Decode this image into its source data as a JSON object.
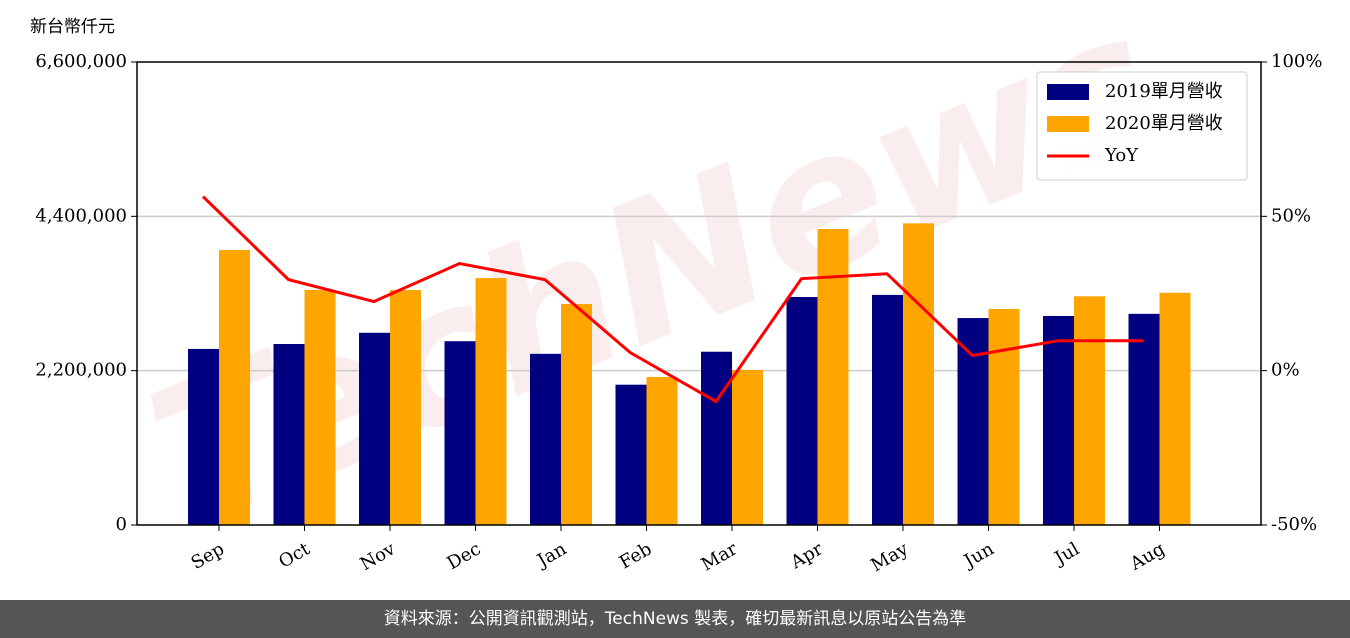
{
  "chart_data": {
    "type": "bar",
    "title": "新台幣仟元",
    "watermark": "TechNews",
    "categories": [
      "Sep",
      "Oct",
      "Nov",
      "Dec",
      "Jan",
      "Feb",
      "Mar",
      "Apr",
      "May",
      "Jun",
      "Jul",
      "Aug"
    ],
    "series": [
      {
        "name": "2019單月營收",
        "color": "#000080",
        "values": [
          2510000,
          2580000,
          2740000,
          2620000,
          2440000,
          2000000,
          2470000,
          3250000,
          3280000,
          2950000,
          2980000,
          3010000
        ]
      },
      {
        "name": "2020單月營收",
        "color": "#ffa500",
        "values": [
          3920000,
          3350000,
          3350000,
          3520000,
          3150000,
          2110000,
          2210000,
          4220000,
          4300000,
          3080000,
          3260000,
          3310000
        ]
      },
      {
        "name": "YoY",
        "color": "#ff0000",
        "type": "line",
        "axis": "y2",
        "values": [
          56.4,
          29.5,
          22.4,
          34.7,
          29.5,
          5.8,
          -10,
          29.8,
          31.4,
          4.9,
          9.7,
          9.7
        ]
      }
    ],
    "ylim": [
      0,
      6600000
    ],
    "yticks": [
      0,
      {
        "value": 2200000,
        "label": "2,200,000"
      },
      {
        "value": 4400000,
        "label": "4,400,000"
      },
      {
        "value": 6600000,
        "label": "6,600,000"
      }
    ],
    "y2lim": [
      -50,
      100
    ],
    "y2ticks": [
      {
        "value": -50,
        "label": "-50%"
      },
      {
        "value": 0,
        "label": "0%"
      },
      {
        "value": 50,
        "label": "50%"
      },
      {
        "value": 100,
        "label": "100%"
      }
    ],
    "grid": true,
    "legend": "upper right",
    "footer": "資料來源：公開資訊觀測站，TechNews 製表，確切最新訊息以原站公告為準"
  }
}
